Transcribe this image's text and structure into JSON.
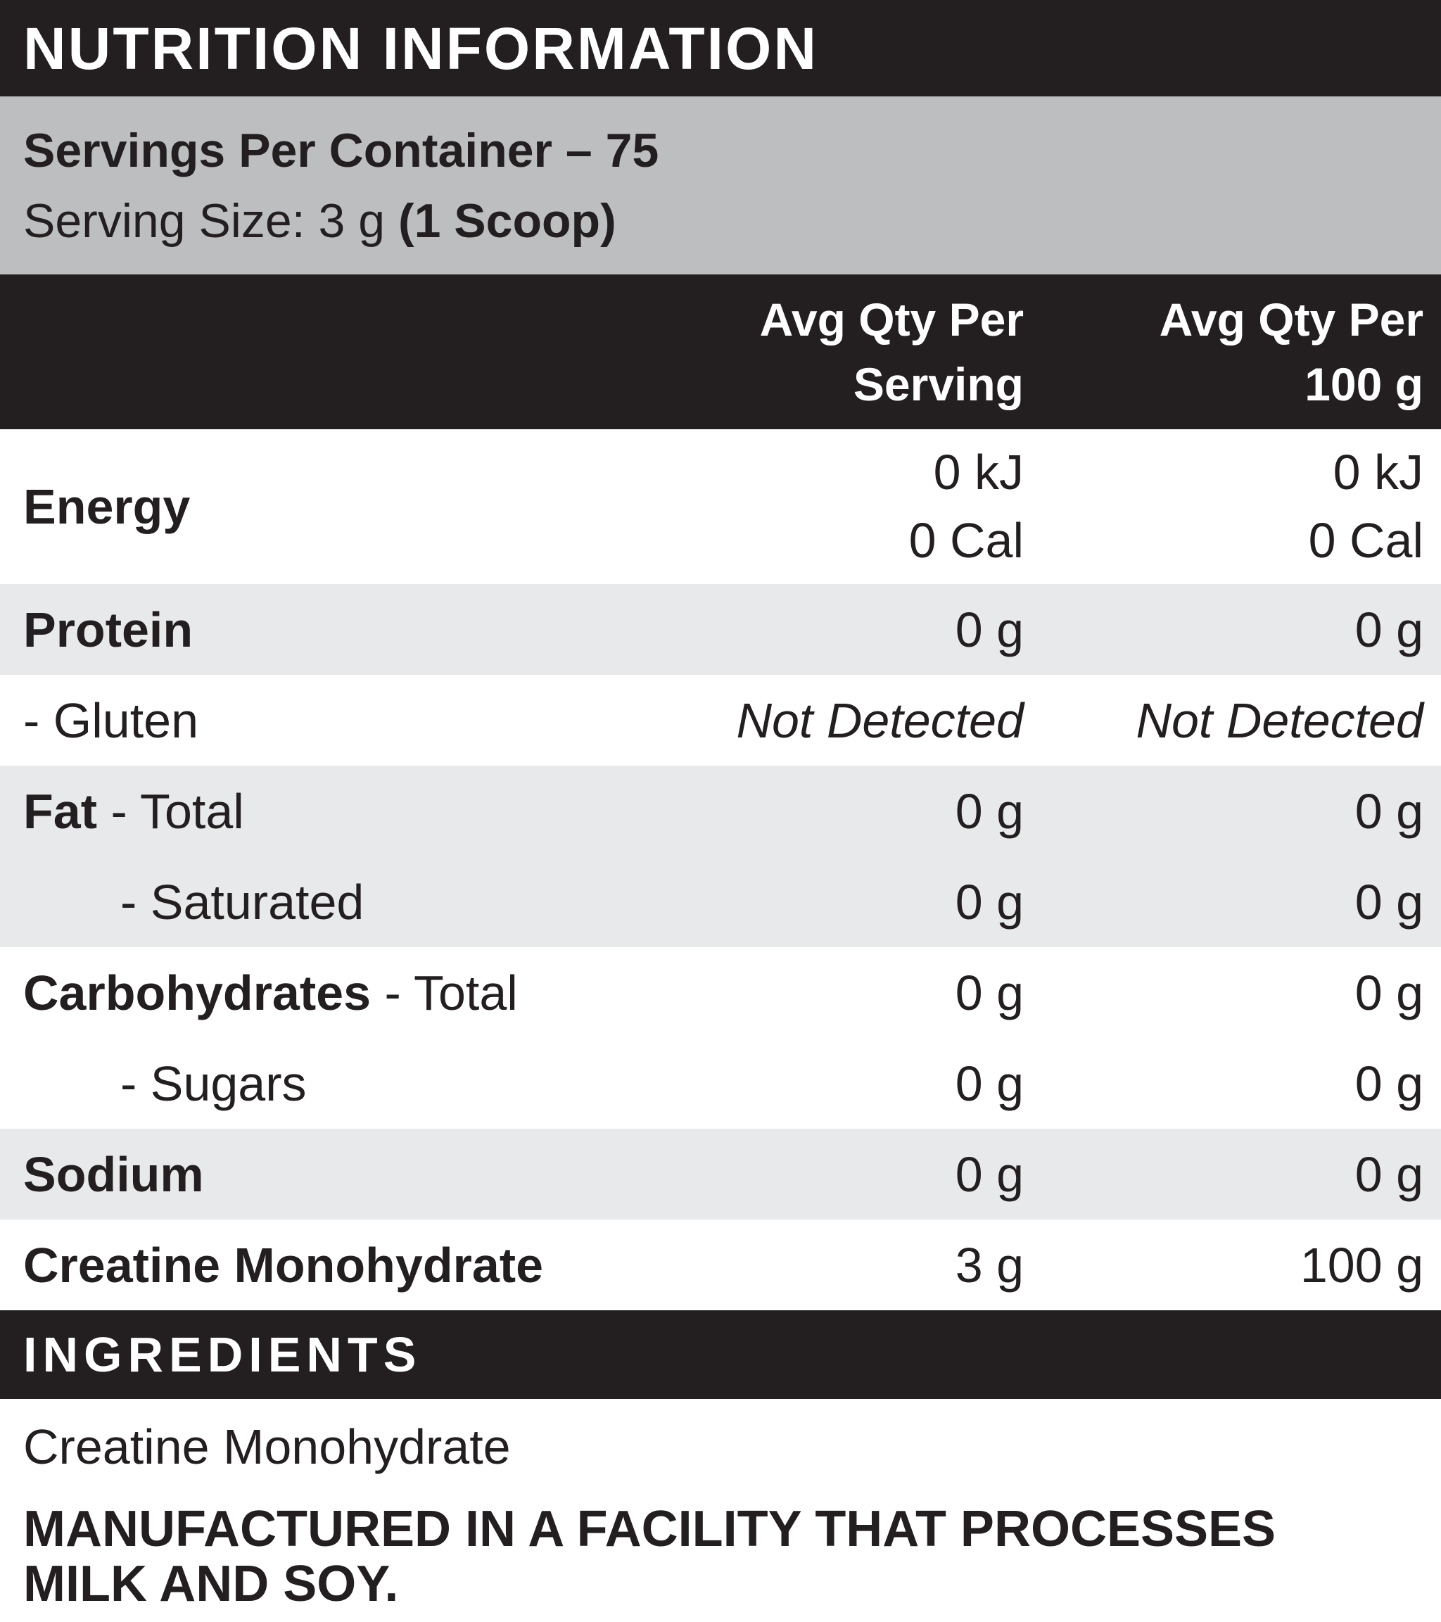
{
  "title": "NUTRITION INFORMATION",
  "serving_info": {
    "servings_per_container": "Servings Per Container – 75",
    "serving_size_prefix": "Serving Size: 3 g ",
    "serving_size_bold": "(1 Scoop)"
  },
  "columns": {
    "per_serving": {
      "line1": "Avg Qty Per",
      "line2": "Serving"
    },
    "per_100g": {
      "line1": "Avg Qty Per",
      "line2": "100 g"
    }
  },
  "table": {
    "energy": {
      "label": "Energy",
      "serving_lines": [
        "0 kJ",
        "0 Cal"
      ],
      "per100_lines": [
        "0 kJ",
        "0 Cal"
      ]
    },
    "rows": [
      {
        "bold": "Protein",
        "rest": "",
        "serving": "0 g",
        "per100": "0 g"
      },
      {
        "bold": "",
        "rest": "- Gluten",
        "serving": "Not Detected",
        "per100": "Not Detected"
      },
      {
        "bold": "Fat",
        "rest": " - Total",
        "serving": "0 g",
        "per100": "0 g"
      },
      {
        "bold": "",
        "rest": "- Saturated",
        "serving": "0 g",
        "per100": "0 g"
      },
      {
        "bold": "Carbohydrates",
        "rest": " - Total",
        "serving": "0 g",
        "per100": "0 g"
      },
      {
        "bold": "",
        "rest": "- Sugars",
        "serving": "0 g",
        "per100": "0 g"
      },
      {
        "bold": "Sodium",
        "rest": "",
        "serving": "0 g",
        "per100": "0 g"
      },
      {
        "bold": "Creatine Monohydrate",
        "rest": "",
        "serving": "3 g",
        "per100": "100 g"
      }
    ]
  },
  "ingredients": {
    "heading": "INGREDIENTS",
    "text": "Creatine Monohydrate"
  },
  "manufactured": {
    "line1": "MANUFACTURED IN A FACILITY THAT PROCESSES",
    "line2": "MILK AND SOY."
  },
  "colors": {
    "black": "#231f20",
    "serving_bar": "#bcbec0",
    "row_gray": "#e8e9ea",
    "text": "#231f20"
  }
}
